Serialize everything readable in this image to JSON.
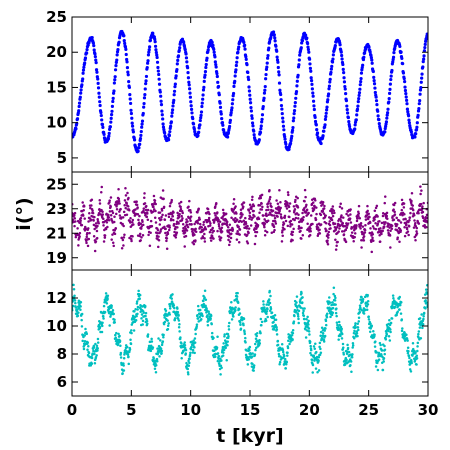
{
  "chart_data": {
    "type": "scatter",
    "xlabel": "t [kyr]",
    "ylabel": "i(°)",
    "xlim": [
      0,
      30
    ],
    "xticks": [
      0,
      5,
      10,
      15,
      20,
      25,
      30
    ],
    "grid": false,
    "legend": "none",
    "panels": [
      {
        "name": "top",
        "color": "#0000ff",
        "ylim": [
          3,
          25
        ],
        "yticks": [
          5,
          10,
          15,
          20,
          25
        ],
        "oscillation": {
          "period": 2.5,
          "start_phase_x": 0.0,
          "peaks": [
            {
              "x": 1.6,
              "y": 22.0
            },
            {
              "x": 4.2,
              "y": 22.8
            },
            {
              "x": 6.8,
              "y": 22.5
            },
            {
              "x": 9.3,
              "y": 21.7
            },
            {
              "x": 11.7,
              "y": 21.5
            },
            {
              "x": 14.3,
              "y": 22.0
            },
            {
              "x": 16.9,
              "y": 22.8
            },
            {
              "x": 19.6,
              "y": 22.5
            },
            {
              "x": 22.4,
              "y": 21.8
            },
            {
              "x": 24.9,
              "y": 21.0
            },
            {
              "x": 27.4,
              "y": 21.5
            },
            {
              "x": 30.0,
              "y": 22.5
            }
          ],
          "troughs": [
            {
              "x": 0.0,
              "y": 8.0
            },
            {
              "x": 2.9,
              "y": 7.3
            },
            {
              "x": 5.5,
              "y": 6.0
            },
            {
              "x": 8.0,
              "y": 7.5
            },
            {
              "x": 10.5,
              "y": 8.2
            },
            {
              "x": 13.0,
              "y": 8.0
            },
            {
              "x": 15.6,
              "y": 7.0
            },
            {
              "x": 18.2,
              "y": 6.2
            },
            {
              "x": 20.9,
              "y": 7.3
            },
            {
              "x": 23.6,
              "y": 8.5
            },
            {
              "x": 26.2,
              "y": 8.2
            },
            {
              "x": 28.8,
              "y": 7.8
            }
          ],
          "noise": 0.15
        }
      },
      {
        "name": "middle",
        "color": "#800080",
        "ylim": [
          18,
          26
        ],
        "yticks": [
          19,
          21,
          23,
          25
        ],
        "envelope": [
          {
            "x": 0,
            "mean": 21.5,
            "spread": 1.1
          },
          {
            "x": 4,
            "mean": 22.4,
            "spread": 1.5
          },
          {
            "x": 7,
            "mean": 22.2,
            "spread": 1.5
          },
          {
            "x": 10,
            "mean": 21.6,
            "spread": 1.1
          },
          {
            "x": 13,
            "mean": 21.7,
            "spread": 1.1
          },
          {
            "x": 17,
            "mean": 22.6,
            "spread": 1.3
          },
          {
            "x": 20,
            "mean": 22.3,
            "spread": 1.2
          },
          {
            "x": 24,
            "mean": 21.4,
            "spread": 1.1
          },
          {
            "x": 27,
            "mean": 21.8,
            "spread": 1.2
          },
          {
            "x": 30,
            "mean": 22.6,
            "spread": 1.4
          }
        ],
        "period": 0.75
      },
      {
        "name": "bottom",
        "color": "#00bfbf",
        "ylim": [
          5,
          14
        ],
        "yticks": [
          6,
          8,
          10,
          12
        ],
        "oscillation": {
          "period": 2.7,
          "mean": 9.6,
          "amplitude": 2.0,
          "start_peak_x": 0.3,
          "wiggle_period": 0.55,
          "wiggle_amp": 0.55,
          "noise": 0.55
        }
      }
    ]
  }
}
